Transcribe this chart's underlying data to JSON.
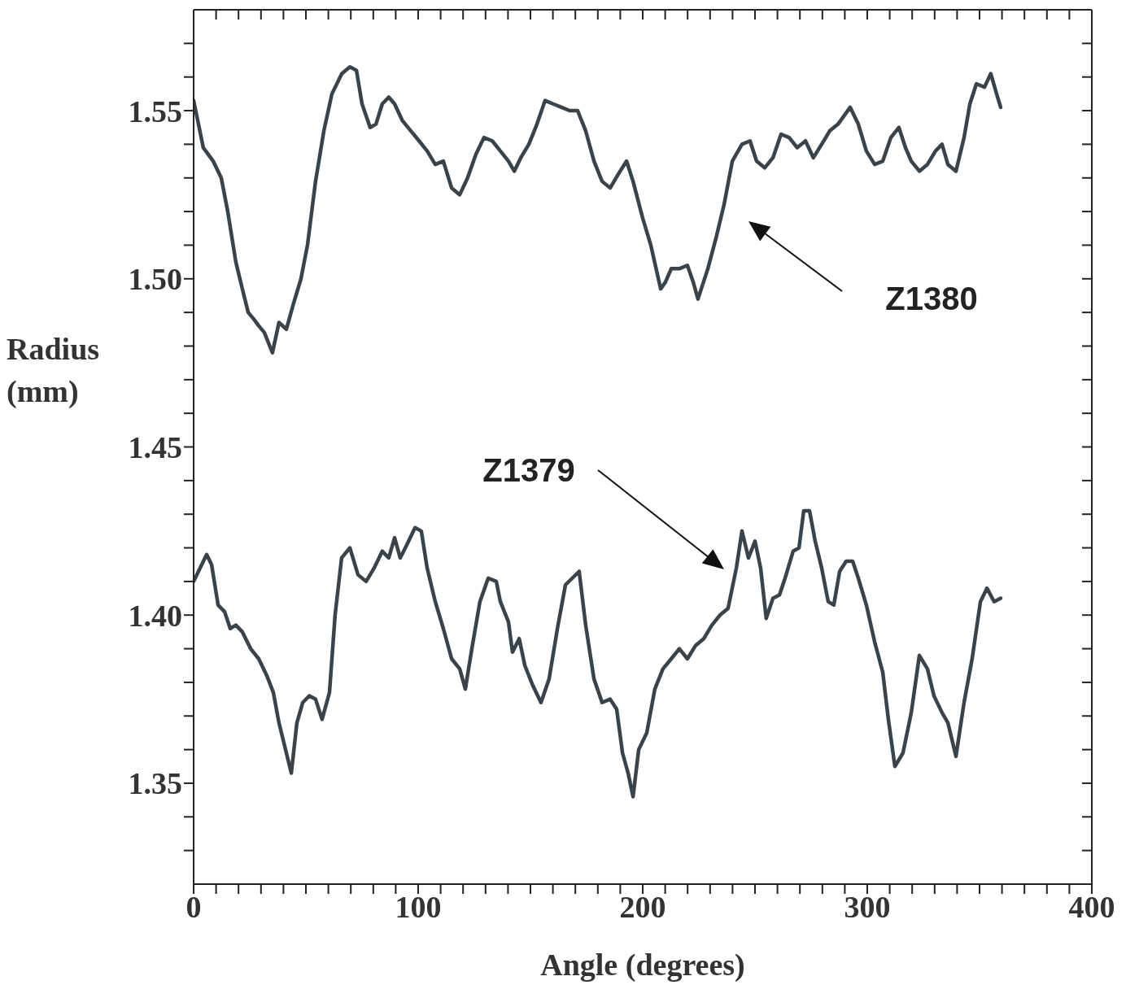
{
  "chart_data": {
    "type": "line",
    "xlabel": "Angle (degrees)",
    "ylabel": "Radius (mm)",
    "xlim": [
      0,
      400
    ],
    "ylim": [
      1.32,
      1.58
    ],
    "xticks": [
      0,
      {
        "value": 10,
        "label": null
      },
      {
        "value": 20,
        "label": null
      },
      {
        "value": 30,
        "label": null
      },
      {
        "value": 40,
        "label": null
      },
      {
        "value": 50,
        "label": null
      },
      {
        "value": 60,
        "label": null
      },
      {
        "value": 70,
        "label": null
      },
      {
        "value": 80,
        "label": null
      },
      {
        "value": 90,
        "label": null
      },
      100,
      {
        "value": 110,
        "label": null
      },
      {
        "value": 120,
        "label": null
      },
      {
        "value": 130,
        "label": null
      },
      {
        "value": 140,
        "label": null
      },
      {
        "value": 150,
        "label": null
      },
      {
        "value": 160,
        "label": null
      },
      {
        "value": 170,
        "label": null
      },
      {
        "value": 180,
        "label": null
      },
      {
        "value": 190,
        "label": null
      },
      200,
      {
        "value": 210,
        "label": null
      },
      {
        "value": 220,
        "label": null
      },
      {
        "value": 230,
        "label": null
      },
      {
        "value": 240,
        "label": null
      },
      {
        "value": 250,
        "label": null
      },
      {
        "value": 260,
        "label": null
      },
      {
        "value": 270,
        "label": null
      },
      {
        "value": 280,
        "label": null
      },
      {
        "value": 290,
        "label": null
      },
      300,
      {
        "value": 310,
        "label": null
      },
      {
        "value": 320,
        "label": null
      },
      {
        "value": 330,
        "label": null
      },
      {
        "value": 340,
        "label": null
      },
      {
        "value": 350,
        "label": null
      },
      {
        "value": 360,
        "label": null
      },
      {
        "value": 370,
        "label": null
      },
      {
        "value": 380,
        "label": null
      },
      {
        "value": 390,
        "label": null
      },
      400
    ],
    "yticks": [
      {
        "value": 1.33,
        "label": null
      },
      {
        "value": 1.34,
        "label": null
      },
      {
        "value": 1.35,
        "label": "1.35"
      },
      {
        "value": 1.36,
        "label": null
      },
      {
        "value": 1.37,
        "label": null
      },
      {
        "value": 1.38,
        "label": null
      },
      {
        "value": 1.39,
        "label": null
      },
      {
        "value": 1.4,
        "label": "1.40"
      },
      {
        "value": 1.41,
        "label": null
      },
      {
        "value": 1.42,
        "label": null
      },
      {
        "value": 1.43,
        "label": null
      },
      {
        "value": 1.44,
        "label": null
      },
      {
        "value": 1.45,
        "label": "1.45"
      },
      {
        "value": 1.46,
        "label": null
      },
      {
        "value": 1.47,
        "label": null
      },
      {
        "value": 1.48,
        "label": null
      },
      {
        "value": 1.49,
        "label": null
      },
      {
        "value": 1.5,
        "label": "1.50"
      },
      {
        "value": 1.51,
        "label": null
      },
      {
        "value": 1.52,
        "label": null
      },
      {
        "value": 1.53,
        "label": null
      },
      {
        "value": 1.54,
        "label": null
      },
      {
        "value": 1.55,
        "label": "1.55"
      },
      {
        "value": 1.56,
        "label": null
      },
      {
        "value": 1.57,
        "label": null
      }
    ],
    "marker": "none",
    "line_style": "solid",
    "annotations": [
      "Z1380",
      "Z1379"
    ],
    "series": [
      {
        "color": "#39434b",
        "x": [
          0,
          4.3,
          8.7,
          12.3,
          15.2,
          18.8,
          21.7,
          24.3,
          26.8,
          29,
          31.5,
          35.1,
          38,
          41.3,
          44.2,
          47.8,
          50.7,
          54.3,
          58,
          61.6,
          66,
          69.6,
          72.5,
          75,
          78.6,
          81.2,
          84,
          86.9,
          89.5,
          93,
          96.7,
          100.4,
          104,
          107.6,
          111.2,
          114.9,
          118.5,
          122,
          125.7,
          129.3,
          133,
          136.6,
          140.2,
          142.8,
          145.7,
          149.3,
          152.9,
          156.5,
          160.1,
          163.8,
          167.4,
          171,
          174.6,
          178.3,
          181.9,
          185.5,
          189,
          192.8,
          195.7,
          200,
          203.6,
          208,
          210.1,
          212.7,
          216.3,
          219.9,
          222.5,
          224.6,
          229,
          232.6,
          236.2,
          239.9,
          244.2,
          247.8,
          250.7,
          254.3,
          258,
          261.6,
          265.2,
          268.8,
          272.5,
          276,
          279.7,
          283.3,
          287,
          292.4,
          296,
          299.6,
          303.3,
          306.9,
          310.5,
          314.1,
          317,
          319.6,
          323.2,
          326.8,
          330.4,
          333.3,
          335.9,
          339.5,
          343.1,
          345.7,
          348.6,
          352.2,
          355,
          357.6,
          359.4
        ],
        "values": [
          1.553,
          1.539,
          1.535,
          1.53,
          1.52,
          1.505,
          1.497,
          1.49,
          1.488,
          1.486,
          1.484,
          1.478,
          1.487,
          1.485,
          1.492,
          1.5,
          1.51,
          1.529,
          1.544,
          1.555,
          1.561,
          1.563,
          1.562,
          1.552,
          1.545,
          1.546,
          1.552,
          1.554,
          1.552,
          1.547,
          1.544,
          1.541,
          1.538,
          1.534,
          1.535,
          1.527,
          1.525,
          1.53,
          1.537,
          1.542,
          1.541,
          1.538,
          1.535,
          1.532,
          1.536,
          1.54,
          1.546,
          1.553,
          1.552,
          1.551,
          1.55,
          1.55,
          1.544,
          1.535,
          1.529,
          1.527,
          1.531,
          1.535,
          1.529,
          1.518,
          1.51,
          1.497,
          1.499,
          1.503,
          1.503,
          1.504,
          1.499,
          1.494,
          1.503,
          1.512,
          1.522,
          1.535,
          1.54,
          1.541,
          1.535,
          1.533,
          1.536,
          1.543,
          1.542,
          1.539,
          1.541,
          1.536,
          1.54,
          1.544,
          1.546,
          1.551,
          1.546,
          1.538,
          1.534,
          1.535,
          1.542,
          1.545,
          1.539,
          1.535,
          1.532,
          1.534,
          1.538,
          1.54,
          1.534,
          1.532,
          1.542,
          1.552,
          1.558,
          1.557,
          1.561,
          1.555,
          1.551
        ]
      },
      {
        "color": "#39434b",
        "x": [
          0,
          2.9,
          5.8,
          8,
          10.9,
          13.8,
          16.3,
          18.8,
          21.7,
          25.4,
          29,
          32.6,
          35.5,
          38,
          41.3,
          43.5,
          46,
          48.6,
          51.5,
          54.3,
          57.2,
          60.5,
          63,
          65.9,
          69.6,
          73.2,
          76.8,
          80.4,
          84,
          86.9,
          89.5,
          92,
          95,
          98.6,
          101.4,
          104,
          107.6,
          111.2,
          114.9,
          118.5,
          121,
          123.9,
          127.5,
          131.2,
          134.8,
          136.6,
          140.2,
          142,
          145,
          147.5,
          151.1,
          154.7,
          158.3,
          162,
          165.6,
          171.7,
          174.6,
          178.3,
          181.9,
          185.5,
          188.4,
          191,
          193.5,
          195.7,
          198.2,
          201.8,
          205.4,
          209,
          212.7,
          216.3,
          219.9,
          223.6,
          227.2,
          230.8,
          234.4,
          238,
          241.7,
          244.2,
          247.1,
          250,
          252.5,
          255,
          258,
          260.9,
          263.4,
          267,
          269.6,
          271.7,
          274.3,
          276.8,
          279.7,
          282.6,
          285.1,
          287.7,
          290.6,
          293.5,
          296,
          299.6,
          303.3,
          306.9,
          309.4,
          312.3,
          315.9,
          319.6,
          323.2,
          326.8,
          329.7,
          333.3,
          335.9,
          339.5,
          343.1,
          346.7,
          350.4,
          353.3,
          356.5,
          359.4
        ],
        "values": [
          1.41,
          1.414,
          1.418,
          1.415,
          1.403,
          1.401,
          1.396,
          1.397,
          1.395,
          1.39,
          1.387,
          1.382,
          1.377,
          1.368,
          1.359,
          1.353,
          1.368,
          1.374,
          1.376,
          1.375,
          1.369,
          1.377,
          1.4,
          1.417,
          1.42,
          1.412,
          1.41,
          1.414,
          1.419,
          1.417,
          1.423,
          1.417,
          1.421,
          1.426,
          1.425,
          1.414,
          1.404,
          1.396,
          1.387,
          1.384,
          1.378,
          1.39,
          1.404,
          1.411,
          1.41,
          1.404,
          1.398,
          1.389,
          1.393,
          1.385,
          1.379,
          1.374,
          1.381,
          1.396,
          1.409,
          1.413,
          1.397,
          1.381,
          1.374,
          1.375,
          1.372,
          1.359,
          1.353,
          1.346,
          1.36,
          1.365,
          1.378,
          1.384,
          1.387,
          1.39,
          1.387,
          1.391,
          1.393,
          1.397,
          1.4,
          1.402,
          1.414,
          1.425,
          1.417,
          1.422,
          1.414,
          1.399,
          1.405,
          1.406,
          1.411,
          1.419,
          1.42,
          1.431,
          1.431,
          1.422,
          1.414,
          1.404,
          1.403,
          1.413,
          1.416,
          1.416,
          1.411,
          1.403,
          1.392,
          1.383,
          1.369,
          1.355,
          1.359,
          1.371,
          1.388,
          1.384,
          1.376,
          1.371,
          1.368,
          1.358,
          1.374,
          1.387,
          1.404,
          1.408,
          1.404,
          1.405
        ]
      }
    ]
  }
}
